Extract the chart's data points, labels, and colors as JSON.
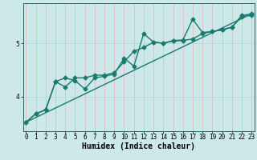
{
  "title": "",
  "xlabel": "Humidex (Indice chaleur)",
  "bg_color": "#cce8e8",
  "line_color": "#1a7a6e",
  "vgrid_color": "#ddbcbc",
  "hgrid_color": "#b8d8d8",
  "line1_x": [
    0,
    1,
    2,
    3,
    4,
    5,
    6,
    7,
    8,
    9,
    10,
    11,
    12,
    13,
    14,
    15,
    16,
    17,
    18,
    19,
    20,
    21,
    22,
    23
  ],
  "line1_y": [
    3.52,
    3.68,
    3.75,
    4.28,
    4.35,
    4.3,
    4.14,
    4.35,
    4.38,
    4.42,
    4.72,
    4.57,
    5.18,
    5.02,
    5.0,
    5.04,
    5.05,
    5.08,
    5.18,
    5.22,
    5.25,
    5.3,
    5.52,
    5.55
  ],
  "line2_x": [
    0,
    1,
    2,
    3,
    4,
    5,
    6,
    7,
    8,
    9,
    10,
    11,
    12,
    13,
    14,
    15,
    16,
    17,
    18,
    19,
    20,
    21,
    22,
    23
  ],
  "line2_y": [
    3.52,
    3.68,
    3.75,
    4.28,
    4.18,
    4.35,
    4.35,
    4.4,
    4.4,
    4.45,
    4.65,
    4.85,
    4.92,
    5.02,
    5.0,
    5.05,
    5.06,
    5.45,
    5.2,
    5.22,
    5.25,
    5.3,
    5.5,
    5.52
  ],
  "line3_x": [
    0,
    23
  ],
  "line3_y": [
    3.52,
    5.55
  ],
  "ylim": [
    3.35,
    5.75
  ],
  "xlim": [
    -0.3,
    23.3
  ],
  "yticks": [
    4,
    5
  ],
  "xticks": [
    0,
    1,
    2,
    3,
    4,
    5,
    6,
    7,
    8,
    9,
    10,
    11,
    12,
    13,
    14,
    15,
    16,
    17,
    18,
    19,
    20,
    21,
    22,
    23
  ],
  "xlabel_fontsize": 7,
  "tick_fontsize": 5.5,
  "marker": "D",
  "markersize": 2.5,
  "linewidth": 1.0
}
